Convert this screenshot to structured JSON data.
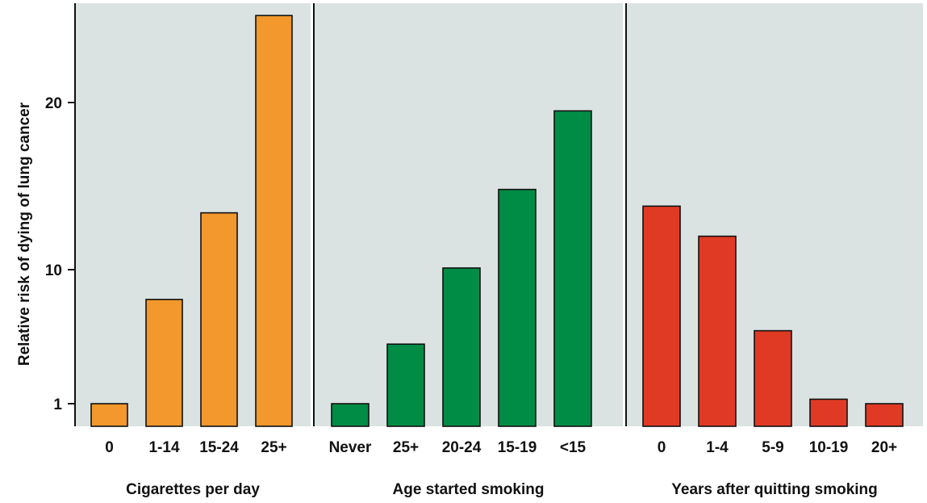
{
  "chart_data": {
    "type": "bar",
    "ylabel": "Relative risk of dying of lung cancer",
    "y_ticks": [
      "1",
      "10",
      "20"
    ],
    "y_scale": "nonlinear (1, 10, 20 marked)",
    "ylim": [
      0.6,
      25.5
    ],
    "background_color": "#dae3e2",
    "panels": [
      {
        "xlabel": "Cigarettes per day",
        "color": "#f2982c",
        "categories": [
          "0",
          "1-14",
          "15-24",
          "25+"
        ],
        "values": [
          1.0,
          8.0,
          13.4,
          25.3
        ]
      },
      {
        "xlabel": "Age started smoking",
        "color": "#008c45",
        "categories": [
          "Never",
          "25+",
          "20-24",
          "15-19",
          "<15"
        ],
        "values": [
          1.0,
          5.0,
          10.1,
          14.8,
          19.5
        ]
      },
      {
        "xlabel": "Years after quitting smoking",
        "color": "#e03a24",
        "categories": [
          "0",
          "1-4",
          "5-9",
          "10-19",
          "20+"
        ],
        "values": [
          13.8,
          12.0,
          5.9,
          1.3,
          1.0
        ]
      }
    ]
  }
}
